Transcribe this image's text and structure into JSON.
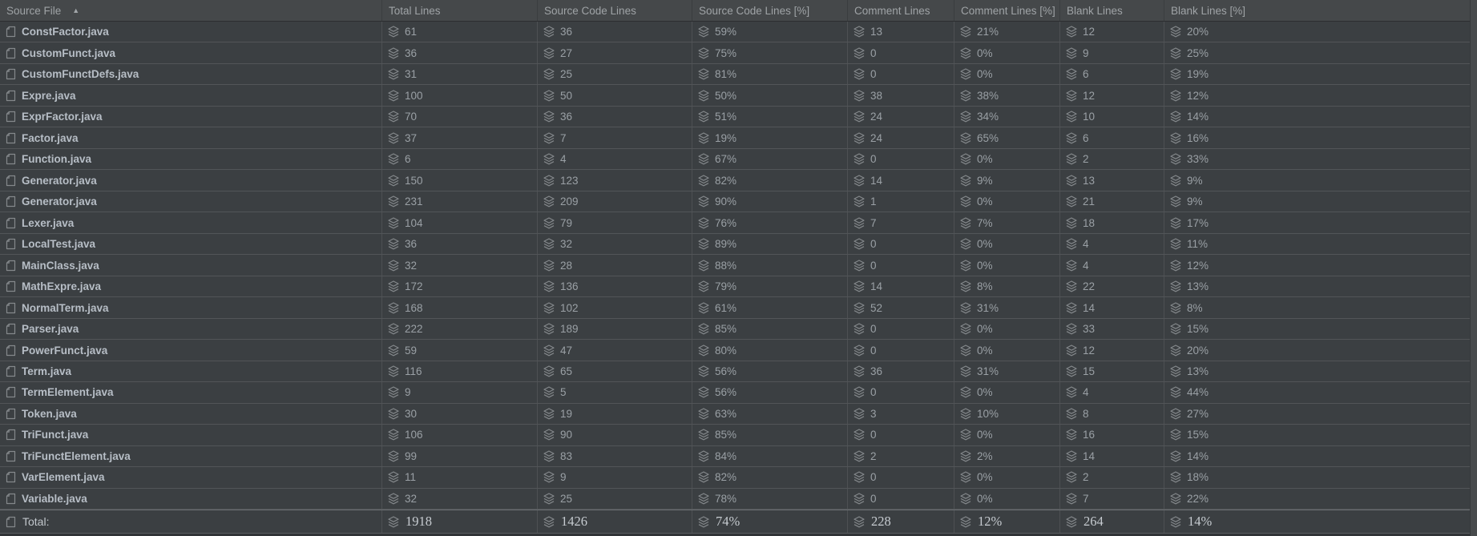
{
  "table": {
    "sort_indicator": "▲",
    "sorted_column": "Source File",
    "sort_direction": "ascending",
    "columns": [
      {
        "id": "source-file",
        "label": "Source File"
      },
      {
        "id": "total-lines",
        "label": "Total Lines"
      },
      {
        "id": "source-code-lines",
        "label": "Source Code Lines"
      },
      {
        "id": "source-code-lines-pct",
        "label": "Source Code Lines [%]"
      },
      {
        "id": "comment-lines",
        "label": "Comment Lines"
      },
      {
        "id": "comment-lines-pct",
        "label": "Comment Lines [%]"
      },
      {
        "id": "blank-lines",
        "label": "Blank Lines"
      },
      {
        "id": "blank-lines-pct",
        "label": "Blank Lines [%]"
      }
    ],
    "rows": [
      {
        "file": "ConstFactor.java",
        "values": [
          "61",
          "36",
          "59%",
          "13",
          "21%",
          "12",
          "20%"
        ]
      },
      {
        "file": "CustomFunct.java",
        "values": [
          "36",
          "27",
          "75%",
          "0",
          "0%",
          "9",
          "25%"
        ]
      },
      {
        "file": "CustomFunctDefs.java",
        "values": [
          "31",
          "25",
          "81%",
          "0",
          "0%",
          "6",
          "19%"
        ]
      },
      {
        "file": "Expre.java",
        "values": [
          "100",
          "50",
          "50%",
          "38",
          "38%",
          "12",
          "12%"
        ]
      },
      {
        "file": "ExprFactor.java",
        "values": [
          "70",
          "36",
          "51%",
          "24",
          "34%",
          "10",
          "14%"
        ]
      },
      {
        "file": "Factor.java",
        "values": [
          "37",
          "7",
          "19%",
          "24",
          "65%",
          "6",
          "16%"
        ]
      },
      {
        "file": "Function.java",
        "values": [
          "6",
          "4",
          "67%",
          "0",
          "0%",
          "2",
          "33%"
        ]
      },
      {
        "file": "Generator.java",
        "values": [
          "150",
          "123",
          "82%",
          "14",
          "9%",
          "13",
          "9%"
        ]
      },
      {
        "file": "Generator.java",
        "values": [
          "231",
          "209",
          "90%",
          "1",
          "0%",
          "21",
          "9%"
        ]
      },
      {
        "file": "Lexer.java",
        "values": [
          "104",
          "79",
          "76%",
          "7",
          "7%",
          "18",
          "17%"
        ]
      },
      {
        "file": "LocalTest.java",
        "values": [
          "36",
          "32",
          "89%",
          "0",
          "0%",
          "4",
          "11%"
        ]
      },
      {
        "file": "MainClass.java",
        "values": [
          "32",
          "28",
          "88%",
          "0",
          "0%",
          "4",
          "12%"
        ]
      },
      {
        "file": "MathExpre.java",
        "values": [
          "172",
          "136",
          "79%",
          "14",
          "8%",
          "22",
          "13%"
        ]
      },
      {
        "file": "NormalTerm.java",
        "values": [
          "168",
          "102",
          "61%",
          "52",
          "31%",
          "14",
          "8%"
        ]
      },
      {
        "file": "Parser.java",
        "values": [
          "222",
          "189",
          "85%",
          "0",
          "0%",
          "33",
          "15%"
        ]
      },
      {
        "file": "PowerFunct.java",
        "values": [
          "59",
          "47",
          "80%",
          "0",
          "0%",
          "12",
          "20%"
        ]
      },
      {
        "file": "Term.java",
        "values": [
          "116",
          "65",
          "56%",
          "36",
          "31%",
          "15",
          "13%"
        ]
      },
      {
        "file": "TermElement.java",
        "values": [
          "9",
          "5",
          "56%",
          "0",
          "0%",
          "4",
          "44%"
        ]
      },
      {
        "file": "Token.java",
        "values": [
          "30",
          "19",
          "63%",
          "3",
          "10%",
          "8",
          "27%"
        ]
      },
      {
        "file": "TriFunct.java",
        "values": [
          "106",
          "90",
          "85%",
          "0",
          "0%",
          "16",
          "15%"
        ]
      },
      {
        "file": "TriFunctElement.java",
        "values": [
          "99",
          "83",
          "84%",
          "2",
          "2%",
          "14",
          "14%"
        ]
      },
      {
        "file": "VarElement.java",
        "values": [
          "11",
          "9",
          "82%",
          "0",
          "0%",
          "2",
          "18%"
        ]
      },
      {
        "file": "Variable.java",
        "values": [
          "32",
          "25",
          "78%",
          "0",
          "0%",
          "7",
          "22%"
        ]
      }
    ],
    "total": {
      "label": "Total:",
      "values": [
        "1918",
        "1426",
        "74%",
        "228",
        "12%",
        "264",
        "14%"
      ]
    }
  },
  "icons": {
    "file": "file-icon",
    "metric": "lines-stack-icon",
    "sort": "sort-ascending-icon"
  },
  "colors": {
    "header_background": "#45484a",
    "row_background": "#3b3f42",
    "row_separator": "#525558",
    "column_separator": "#4d5053",
    "header_text": "#9fa3a6",
    "file_name_text": "#b7bec6",
    "value_text": "#9aa0a5",
    "total_text": "#c6cbd0",
    "icon_gray": "#84888b",
    "scrollbar_track": "#474a4c"
  }
}
